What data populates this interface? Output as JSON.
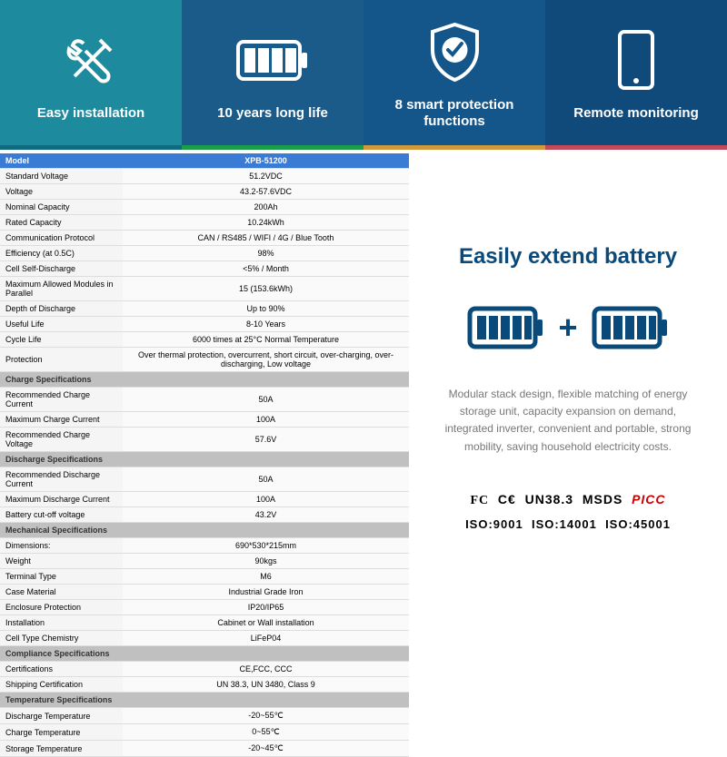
{
  "features": [
    {
      "label": "Easy installation",
      "bg": "#1e8a9e",
      "accent": "#0e6a7e"
    },
    {
      "label": "10 years long life",
      "bg": "#1a5b8a",
      "accent": "#1a9e4a"
    },
    {
      "label": "8 smart protection functions",
      "bg": "#15568a",
      "accent": "#d19a3a"
    },
    {
      "label": "Remote monitoring",
      "bg": "#0f4a7a",
      "accent": "#c44a5a"
    }
  ],
  "spec_table": {
    "header": {
      "label": "Model",
      "value": "XPB-51200"
    },
    "sections": [
      {
        "rows": [
          {
            "label": "Standard Voltage",
            "value": "51.2VDC"
          },
          {
            "label": "Voltage",
            "value": "43.2-57.6VDC"
          },
          {
            "label": "Nominal Capacity",
            "value": "200Ah"
          },
          {
            "label": "Rated Capacity",
            "value": "10.24kWh"
          },
          {
            "label": "Communication Protocol",
            "value": "CAN / RS485 / WIFI / 4G / Blue Tooth"
          },
          {
            "label": "Efficiency (at 0.5C)",
            "value": "98%"
          },
          {
            "label": "Cell Self-Discharge",
            "value": "<5% / Month"
          },
          {
            "label": "Maximum Allowed Modules in Parallel",
            "value": "15 (153.6kWh)"
          },
          {
            "label": "Depth of Discharge",
            "value": "Up  to  90%"
          },
          {
            "label": "Useful Life",
            "value": "8-10 Years"
          },
          {
            "label": "Cycle Life",
            "value": "6000 times at 25°C Normal Temperature"
          },
          {
            "label": "Protection",
            "value": "Over thermal protection, overcurrent, short circuit, over-charging, over-discharging, Low voltage"
          }
        ]
      },
      {
        "title": "Charge Specifications",
        "rows": [
          {
            "label": "Recommended Charge Current",
            "value": "50A"
          },
          {
            "label": "Maximum Charge Current",
            "value": "100A"
          },
          {
            "label": "Recommended Charge Voltage",
            "value": "57.6V"
          }
        ]
      },
      {
        "title": "Discharge Specifications",
        "rows": [
          {
            "label": "Recommended Discharge Current",
            "value": "50A"
          },
          {
            "label": "Maximum Discharge Current",
            "value": "100A"
          },
          {
            "label": "Battery cut-off voltage",
            "value": "43.2V"
          }
        ]
      },
      {
        "title": "Mechanical Specifications",
        "rows": [
          {
            "label": "Dimensions:",
            "value": "690*530*215mm"
          },
          {
            "label": "Weight",
            "value": "90kgs"
          },
          {
            "label": "Terminal Type",
            "value": "M6"
          },
          {
            "label": "Case Material",
            "value": "Industrial Grade Iron"
          },
          {
            "label": "Enclosure Protection",
            "value": "IP20/IP65"
          },
          {
            "label": "Installation",
            "value": "Cabinet or Wall installation"
          },
          {
            "label": "Cell Type Chemistry",
            "value": "LiFeP04"
          }
        ]
      },
      {
        "title": "Compliance Specifications",
        "rows": [
          {
            "label": "Certifications",
            "value": "CE,FCC, CCC"
          },
          {
            "label": "Shipping Certification",
            "value": "UN 38.3, UN 3480, Class 9"
          }
        ]
      },
      {
        "title": "Temperature Specifications",
        "rows": [
          {
            "label": "Discharge Temperature",
            "value": "-20~55℃"
          },
          {
            "label": "Charge Temperature",
            "value": "0~55℃"
          },
          {
            "label": "Storage Temperature",
            "value": "-20~45℃"
          }
        ]
      }
    ]
  },
  "right": {
    "title": "Easily extend battery",
    "plus": "+",
    "desc": "Modular stack design, flexible matching of energy storage unit, capacity expansion on demand, integrated inverter, convenient and portable, strong mobility, saving household electricity costs.",
    "certs": {
      "fc": "FC",
      "ce": "C€",
      "un": "UN38.3",
      "msds": "MSDS",
      "picc": "PICC"
    },
    "iso": {
      "a": "ISO:9001",
      "b": "ISO:14001",
      "c": "ISO:45001"
    }
  },
  "colors": {
    "battery_stroke": "#0a4a7a",
    "battery_fill": "#0a4a7a",
    "title_color": "#0a4a7a",
    "desc_color": "#777",
    "table_header_bg": "#3a7bd5",
    "table_section_bg": "#c0c0c0"
  }
}
